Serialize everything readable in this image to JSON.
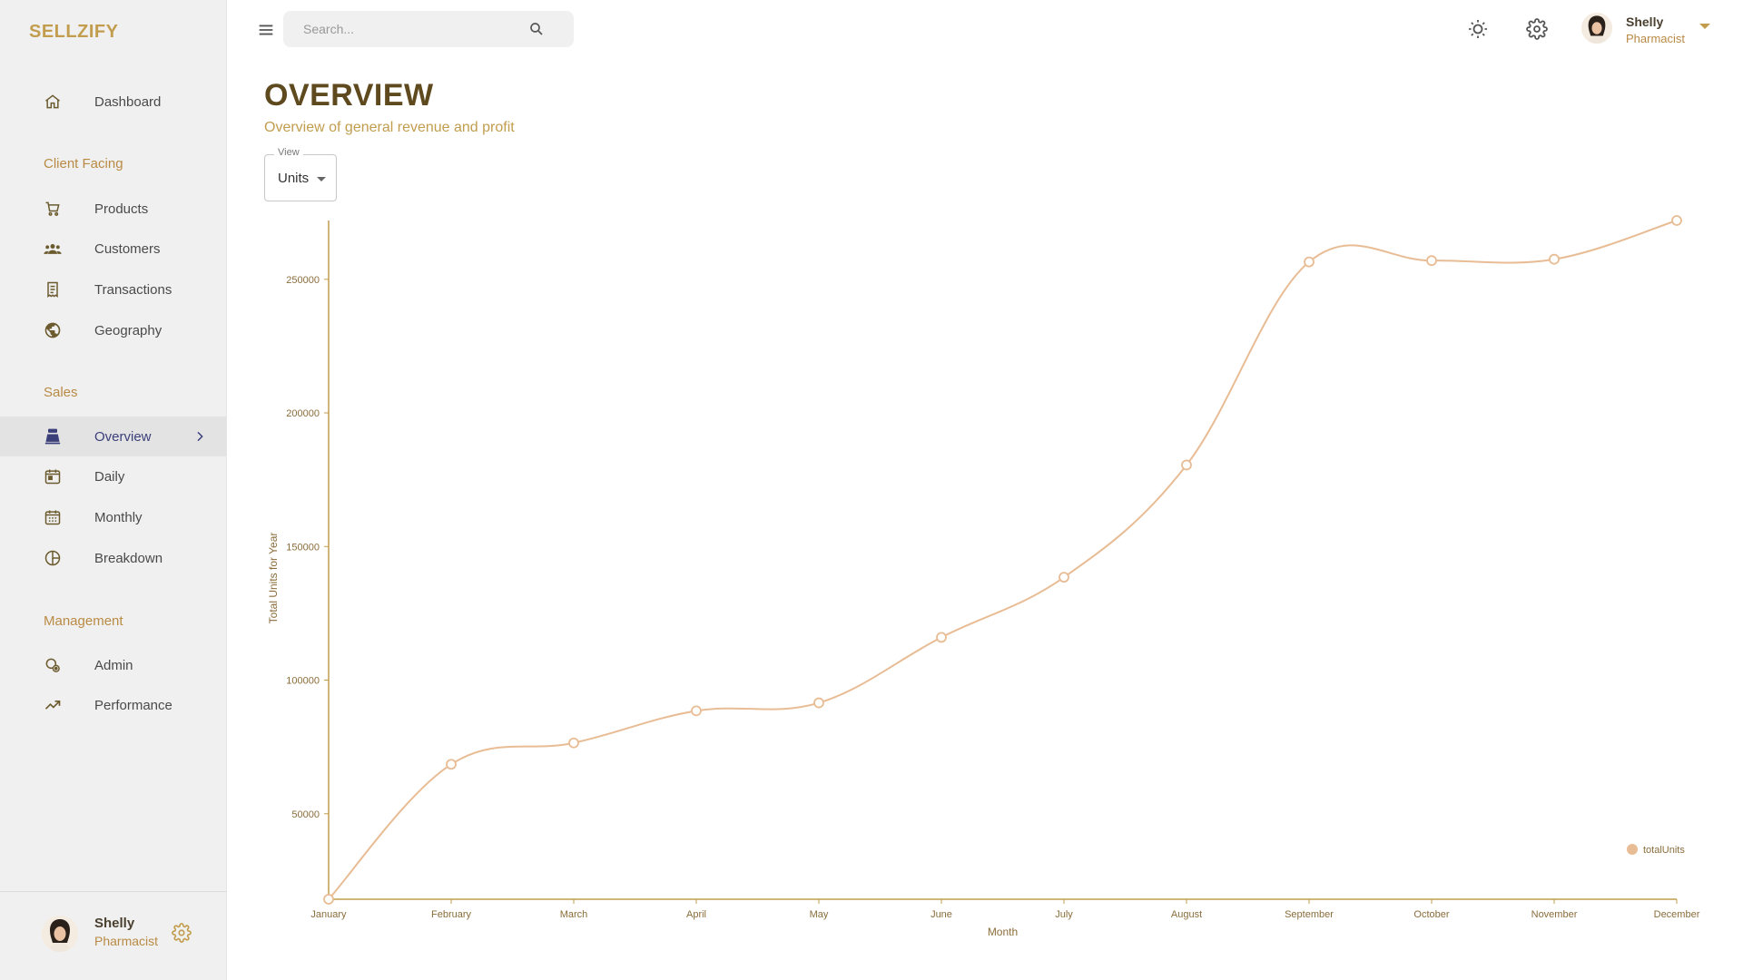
{
  "brand": "SELLZIFY",
  "sidebar": {
    "dashboard": "Dashboard",
    "sections": {
      "client": "Client Facing",
      "sales": "Sales",
      "management": "Management"
    },
    "items": {
      "products": "Products",
      "customers": "Customers",
      "transactions": "Transactions",
      "geography": "Geography",
      "overview": "Overview",
      "daily": "Daily",
      "monthly": "Monthly",
      "breakdown": "Breakdown",
      "admin": "Admin",
      "performance": "Performance"
    },
    "active": "overview",
    "user": {
      "name": "Shelly",
      "role": "Pharmacist"
    }
  },
  "topbar": {
    "search_placeholder": "Search...",
    "user": {
      "name": "Shelly",
      "role": "Pharmacist"
    }
  },
  "header": {
    "title": "OVERVIEW",
    "subtitle": "Overview of general revenue and profit"
  },
  "view_select": {
    "label": "View",
    "value": "Units"
  },
  "colors": {
    "accent": "#c29d4e",
    "title": "#5e4a1e",
    "line": "#e8bc94",
    "active_nav": "#3b3f7a"
  },
  "chart_data": {
    "type": "line",
    "x": [
      "January",
      "February",
      "March",
      "April",
      "May",
      "June",
      "July",
      "August",
      "September",
      "October",
      "November",
      "December"
    ],
    "series": [
      {
        "name": "totalUnits",
        "values": [
          18000,
          68500,
          76500,
          88500,
          91500,
          116000,
          138500,
          180500,
          256500,
          257000,
          257500,
          272000
        ]
      }
    ],
    "xlabel": "Month",
    "ylabel": "Total Units for Year",
    "yticks": [
      50000,
      100000,
      150000,
      200000,
      250000
    ],
    "ylim": [
      18000,
      272000
    ],
    "grid": false,
    "legend": "bottom-right"
  }
}
